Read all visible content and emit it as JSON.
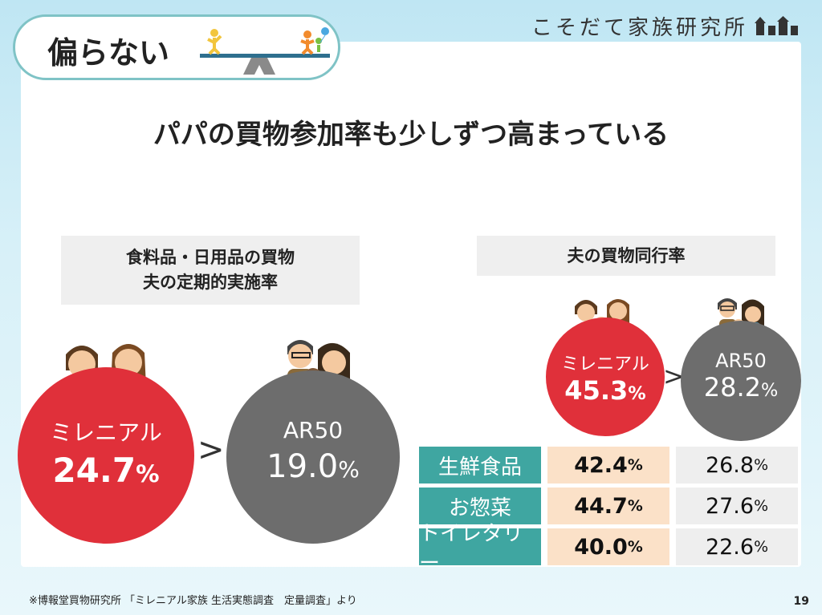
{
  "header": {
    "title": "偏らない",
    "brand": "こそだて家族研究所"
  },
  "headline": "パパの買物参加率も少しずつ高まっている",
  "left_section": {
    "label_line1": "食料品・日用品の買物",
    "label_line2": "夫の定期的実施率",
    "millennial": {
      "label": "ミレニアル",
      "value": "24.7",
      "unit": "%"
    },
    "comparator": ">",
    "ar50": {
      "label": "AR50",
      "value": "19.0",
      "unit": "%"
    }
  },
  "right_section": {
    "label": "夫の買物同行率",
    "millennial": {
      "label": "ミレニアル",
      "value": "45.3",
      "unit": "%"
    },
    "comparator": ">",
    "ar50": {
      "label": "AR50",
      "value": "28.2",
      "unit": "%"
    },
    "rows": [
      {
        "category": "生鮮食品",
        "millennial": "42.4",
        "ar50": "26.8",
        "unit": "%"
      },
      {
        "category": "お惣菜",
        "millennial": "44.7",
        "ar50": "27.6",
        "unit": "%"
      },
      {
        "category": "トイレタリー",
        "millennial": "40.0",
        "ar50": "22.6",
        "unit": "%"
      }
    ]
  },
  "footnote": "※博報堂買物研究所 「ミレニアル家族 生活実態調査　定量調査」より",
  "page_number": "19",
  "colors": {
    "millennial_red": "#e0303a",
    "ar50_gray": "#6d6d6d",
    "teal": "#3fa6a1",
    "peach": "#fbe1c8"
  }
}
